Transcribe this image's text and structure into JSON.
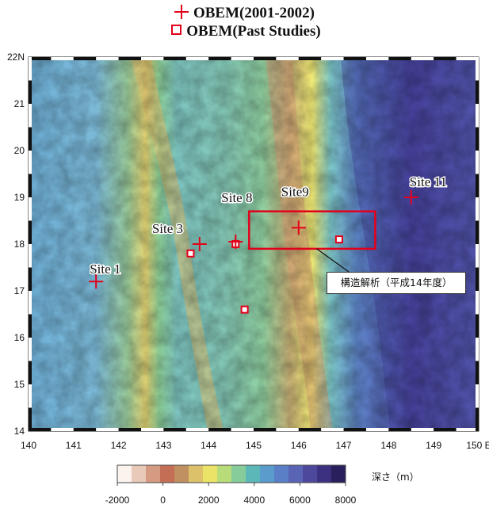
{
  "legend": {
    "obem_new": "OBEM(2001-2002)",
    "obem_past": "OBEM(Past Studies)"
  },
  "map": {
    "x_axis_ticks": [
      "140",
      "141",
      "142",
      "143",
      "144",
      "145",
      "146",
      "147",
      "148",
      "149",
      "150 E"
    ],
    "y_axis_ticks": [
      "22N",
      "21",
      "20",
      "19",
      "18",
      "17",
      "16",
      "15",
      "14"
    ],
    "lon_range": [
      140,
      150
    ],
    "lat_range": [
      14,
      22
    ]
  },
  "sites": [
    {
      "label": "Site 1",
      "lon": 141.5,
      "lat": 17.2
    },
    {
      "label": "Site 3",
      "lon": 143.8,
      "lat": 18.0
    },
    {
      "label": "Site 8",
      "lon": 144.6,
      "lat": 18.05
    },
    {
      "label": "Site9",
      "lon": 146.0,
      "lat": 18.35
    },
    {
      "label": "Site 11",
      "lon": 148.5,
      "lat": 19.0
    }
  ],
  "past_studies": [
    {
      "lon": 143.6,
      "lat": 17.8
    },
    {
      "lon": 144.6,
      "lat": 18.0
    },
    {
      "lon": 146.9,
      "lat": 18.1
    },
    {
      "lon": 144.8,
      "lat": 16.6
    }
  ],
  "structure_area": {
    "label": "構造解析（平成14年度）",
    "lon_range": [
      144.9,
      147.7
    ],
    "lat_range": [
      17.9,
      18.7
    ]
  },
  "colorbar": {
    "unit_label": "深さ（m）",
    "ticks": [
      "-2000",
      "0",
      "2000",
      "4000",
      "6000",
      "8000"
    ],
    "colors": [
      "#fbf3ee",
      "#e9c9b8",
      "#d59a82",
      "#c46f55",
      "#c09060",
      "#dcc06a",
      "#ebe268",
      "#b8dc7a",
      "#86cc9a",
      "#5cb8b8",
      "#5a9ccc",
      "#5a7fc6",
      "#5a64b4",
      "#4e489c",
      "#3c3180",
      "#281f5c"
    ]
  }
}
